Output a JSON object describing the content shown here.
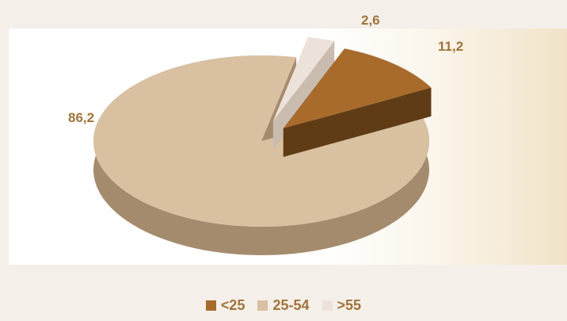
{
  "chart_data": {
    "type": "pie",
    "series": [
      {
        "name": "<25",
        "value": 11.2,
        "label": "11,2",
        "color": "#a86b2c",
        "side": "#5f3c15"
      },
      {
        "name": "25-54",
        "value": 86.2,
        "label": "86,2",
        "color": "#d8c0a1",
        "side": "#a58b6d"
      },
      {
        "name": ">55",
        "value": 2.6,
        "label": "2,6",
        "color": "#ede2d9",
        "side": "#c9bcae"
      }
    ],
    "legend_position": "bottom"
  }
}
